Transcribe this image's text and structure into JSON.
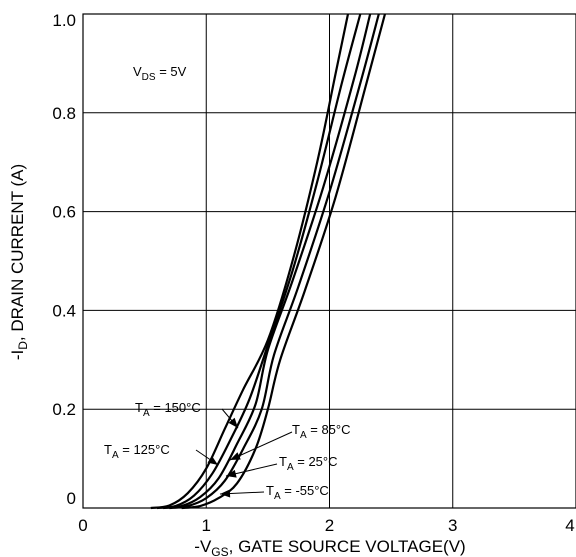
{
  "chart_data": {
    "type": "line",
    "xlabel_prefix": "-V",
    "xlabel_sub": "GS",
    "xlabel_rest": ", GATE SOURCE VOLTAGE(V)",
    "ylabel_prefix": "-I",
    "ylabel_sub": "D",
    "ylabel_rest": ", DRAIN CURRENT (A)",
    "xlim": [
      0,
      4
    ],
    "ylim": [
      0,
      1.0
    ],
    "x_ticks": [
      0,
      1,
      2,
      3,
      4
    ],
    "x_tick_labels": [
      "0",
      "1",
      "2",
      "3",
      "4"
    ],
    "y_ticks": [
      0,
      0.2,
      0.4,
      0.6,
      0.8,
      1.0
    ],
    "y_tick_labels": [
      "0",
      "0.2",
      "0.4",
      "0.6",
      "0.8",
      "1.0"
    ],
    "grid": true,
    "condition": {
      "prefix": "V",
      "sub": "DS",
      "rest": " = 5V"
    },
    "series": [
      {
        "name": "T_A = 150°C",
        "label_prefix": "T",
        "label_sub": "A",
        "label_rest": " = 150°C",
        "x": [
          0.55,
          0.7,
          0.85,
          1.0,
          1.15,
          1.3,
          1.5,
          1.7,
          1.9,
          2.05,
          2.15
        ],
        "y": [
          0,
          0.005,
          0.03,
          0.08,
          0.16,
          0.24,
          0.34,
          0.5,
          0.7,
          0.88,
          1.0
        ]
      },
      {
        "name": "T_A = 125°C",
        "label_prefix": "T",
        "label_sub": "A",
        "label_rest": " = 125°C",
        "x": [
          0.6,
          0.75,
          0.9,
          1.05,
          1.2,
          1.35,
          1.5,
          1.7,
          1.9,
          2.1,
          2.25
        ],
        "y": [
          0,
          0.004,
          0.025,
          0.07,
          0.14,
          0.22,
          0.33,
          0.48,
          0.66,
          0.86,
          1.0
        ]
      },
      {
        "name": "T_A = 85°C",
        "label_prefix": "T",
        "label_sub": "A",
        "label_rest": " = 85°C",
        "x": [
          0.65,
          0.8,
          0.95,
          1.1,
          1.25,
          1.4,
          1.5,
          1.7,
          1.95,
          2.2,
          2.33
        ],
        "y": [
          0,
          0.004,
          0.022,
          0.06,
          0.13,
          0.21,
          0.32,
          0.46,
          0.65,
          0.87,
          1.0
        ]
      },
      {
        "name": "T_A = 25°C",
        "label_prefix": "T",
        "label_sub": "A",
        "label_rest": " = 25°C",
        "x": [
          0.7,
          0.85,
          1.0,
          1.15,
          1.3,
          1.45,
          1.55,
          1.75,
          2.0,
          2.25,
          2.4
        ],
        "y": [
          0,
          0.004,
          0.02,
          0.055,
          0.12,
          0.2,
          0.31,
          0.45,
          0.64,
          0.86,
          1.0
        ]
      },
      {
        "name": "T_A = -55°C",
        "label_prefix": "T",
        "label_sub": "A",
        "label_rest": " = -55°C",
        "x": [
          0.8,
          0.95,
          1.1,
          1.25,
          1.4,
          1.5,
          1.6,
          1.8,
          2.05,
          2.3,
          2.45
        ],
        "y": [
          0,
          0.004,
          0.02,
          0.05,
          0.12,
          0.2,
          0.3,
          0.44,
          0.63,
          0.86,
          1.0
        ]
      }
    ]
  }
}
